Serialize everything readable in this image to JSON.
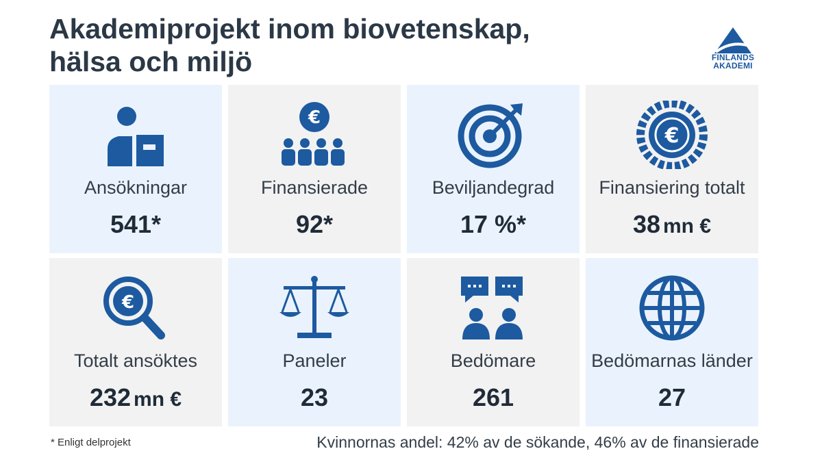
{
  "title": {
    "line1": "Akademiprojekt inom biovetenskap,",
    "line2": "hälsa och miljö"
  },
  "logo": {
    "line1": "FINLANDS",
    "line2": "AKADEMI"
  },
  "colors": {
    "icon_blue": "#1d5aa0",
    "tile_blue": "#eaf3fd",
    "tile_gray": "#f2f2f2",
    "text_dark": "#1f2b38"
  },
  "stats": [
    {
      "label": "Ansökningar",
      "value": "541*",
      "unit": "",
      "icon": "person-document-icon"
    },
    {
      "label": "Finansierade",
      "value": "92*",
      "unit": "",
      "icon": "euro-group-icon"
    },
    {
      "label": "Beviljandegrad",
      "value": "17 %*",
      "unit": "",
      "icon": "target-icon"
    },
    {
      "label": "Finansiering totalt",
      "value": "38",
      "unit": "mn €",
      "icon": "euro-coin-icon"
    },
    {
      "label": "Totalt ansöktes",
      "value": "232",
      "unit": "mn €",
      "icon": "euro-magnifier-icon"
    },
    {
      "label": "Paneler",
      "value": "23",
      "unit": "",
      "icon": "scales-icon"
    },
    {
      "label": "Bedömare",
      "value": "261",
      "unit": "",
      "icon": "reviewers-chat-icon"
    },
    {
      "label": "Bedömarnas länder",
      "value": "27",
      "unit": "",
      "icon": "globe-icon"
    }
  ],
  "footnote": "* Enligt delprojekt",
  "women_share": "Kvinnornas andel:  42% av de sökande, 46% av de finansierade"
}
